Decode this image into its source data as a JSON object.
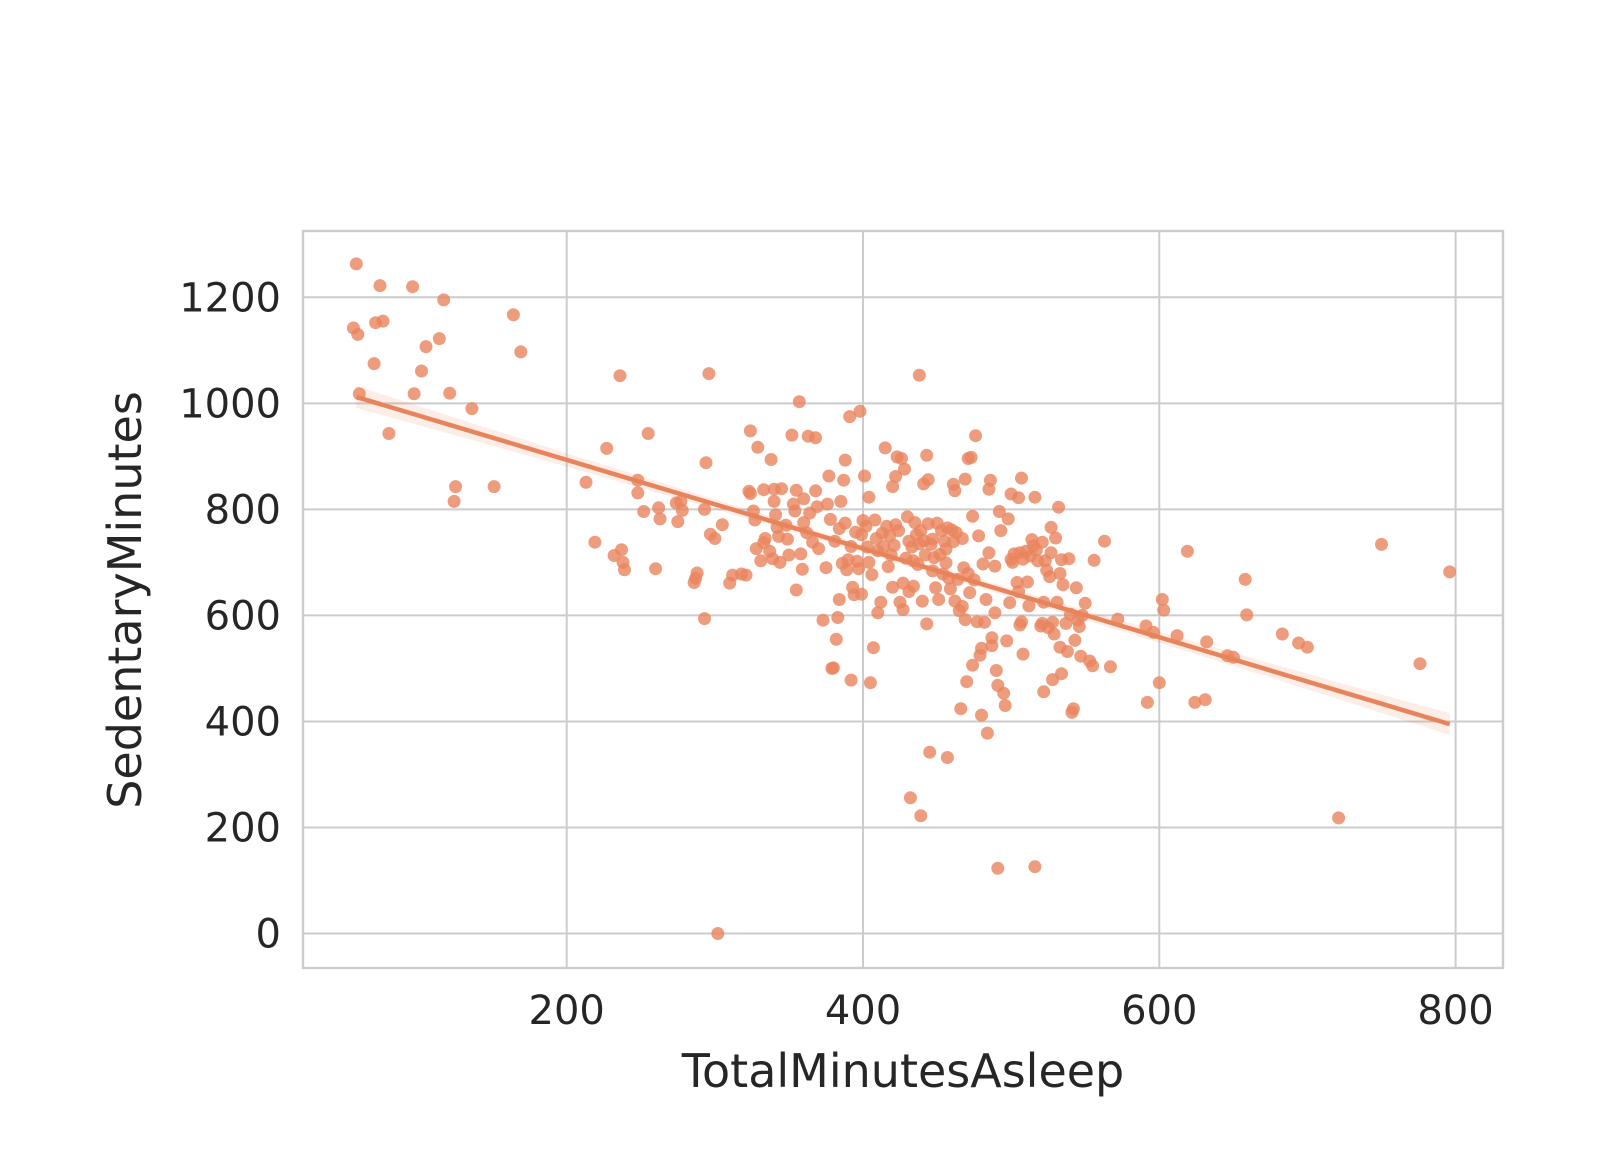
{
  "chart_data": {
    "type": "scatter",
    "xlabel": "TotalMinutesAsleep",
    "ylabel": "SedentaryMinutes",
    "xlim": [
      22,
      832
    ],
    "ylim": [
      -65,
      1325
    ],
    "xticks": [
      200,
      400,
      600,
      800
    ],
    "yticks": [
      0,
      200,
      400,
      600,
      800,
      1000,
      1200
    ],
    "xtick_labels": [
      "200",
      "400",
      "600",
      "800"
    ],
    "ytick_labels": [
      "0",
      "200",
      "400",
      "600",
      "800",
      "1000",
      "1200"
    ],
    "grid": true,
    "legend": "none",
    "point_color": "#E8845C",
    "line_color": "#E8845C",
    "regression": {
      "x_start": 58,
      "y_start": 1012,
      "x_end": 796,
      "y_end": 395
    },
    "points": [
      [
        58,
        1263
      ],
      [
        56,
        1142
      ],
      [
        59,
        1130
      ],
      [
        60,
        1018
      ],
      [
        71,
        1152
      ],
      [
        74,
        1222
      ],
      [
        76,
        1155
      ],
      [
        70,
        1075
      ],
      [
        80,
        943
      ],
      [
        96,
        1220
      ],
      [
        97,
        1018
      ],
      [
        102,
        1061
      ],
      [
        105,
        1107
      ],
      [
        114,
        1122
      ],
      [
        117,
        1195
      ],
      [
        121,
        1019
      ],
      [
        125,
        843
      ],
      [
        124,
        815
      ],
      [
        136,
        990
      ],
      [
        151,
        843
      ],
      [
        164,
        1167
      ],
      [
        169,
        1097
      ],
      [
        213,
        851
      ],
      [
        219,
        738
      ],
      [
        227,
        915
      ],
      [
        232,
        713
      ],
      [
        237,
        724
      ],
      [
        238,
        700
      ],
      [
        239,
        686
      ],
      [
        236,
        1052
      ],
      [
        248,
        855
      ],
      [
        248,
        831
      ],
      [
        252,
        796
      ],
      [
        255,
        943
      ],
      [
        260,
        688
      ],
      [
        262,
        803
      ],
      [
        263,
        782
      ],
      [
        274,
        812
      ],
      [
        275,
        777
      ],
      [
        277,
        815
      ],
      [
        278,
        798
      ],
      [
        286,
        662
      ],
      [
        287,
        670
      ],
      [
        288,
        680
      ],
      [
        293,
        800
      ],
      [
        293,
        594
      ],
      [
        294,
        888
      ],
      [
        296,
        1056
      ],
      [
        297,
        753
      ],
      [
        300,
        745
      ],
      [
        302,
        0
      ],
      [
        305,
        771
      ],
      [
        310,
        661
      ],
      [
        312,
        676
      ],
      [
        318,
        678
      ],
      [
        321,
        676
      ],
      [
        323,
        834
      ],
      [
        324,
        830
      ],
      [
        324,
        948
      ],
      [
        326,
        797
      ],
      [
        327,
        780
      ],
      [
        328,
        726
      ],
      [
        329,
        917
      ],
      [
        331,
        703
      ],
      [
        333,
        737
      ],
      [
        333,
        837
      ],
      [
        334,
        745
      ],
      [
        337,
        721
      ],
      [
        338,
        894
      ],
      [
        339,
        707
      ],
      [
        340,
        838
      ],
      [
        340,
        815
      ],
      [
        341,
        790
      ],
      [
        342,
        766
      ],
      [
        343,
        749
      ],
      [
        344,
        700
      ],
      [
        345,
        839
      ],
      [
        348,
        770
      ],
      [
        349,
        744
      ],
      [
        350,
        714
      ],
      [
        352,
        940
      ],
      [
        353,
        810
      ],
      [
        354,
        797
      ],
      [
        355,
        836
      ],
      [
        355,
        648
      ],
      [
        357,
        1003
      ],
      [
        358,
        716
      ],
      [
        359,
        687
      ],
      [
        360,
        820
      ],
      [
        360,
        775
      ],
      [
        362,
        756
      ],
      [
        363,
        938
      ],
      [
        364,
        793
      ],
      [
        366,
        738
      ],
      [
        368,
        935
      ],
      [
        368,
        835
      ],
      [
        369,
        805
      ],
      [
        370,
        726
      ],
      [
        373,
        591
      ],
      [
        375,
        690
      ],
      [
        376,
        810
      ],
      [
        377,
        863
      ],
      [
        378,
        781
      ],
      [
        379,
        500
      ],
      [
        380,
        501
      ],
      [
        381,
        740
      ],
      [
        382,
        555
      ],
      [
        383,
        596
      ],
      [
        384,
        630
      ],
      [
        384,
        764
      ],
      [
        385,
        815
      ],
      [
        386,
        698
      ],
      [
        387,
        855
      ],
      [
        388,
        774
      ],
      [
        388,
        893
      ],
      [
        389,
        686
      ],
      [
        390,
        705
      ],
      [
        391,
        975
      ],
      [
        392,
        478
      ],
      [
        392,
        730
      ],
      [
        393,
        653
      ],
      [
        394,
        639
      ],
      [
        395,
        757
      ],
      [
        396,
        702
      ],
      [
        397,
        688
      ],
      [
        398,
        985
      ],
      [
        399,
        752
      ],
      [
        399,
        640
      ],
      [
        400,
        779
      ],
      [
        401,
        863
      ],
      [
        402,
        768
      ],
      [
        403,
        729
      ],
      [
        404,
        823
      ],
      [
        404,
        700
      ],
      [
        405,
        473
      ],
      [
        406,
        677
      ],
      [
        407,
        539
      ],
      [
        408,
        780
      ],
      [
        409,
        745
      ],
      [
        410,
        722
      ],
      [
        410,
        605
      ],
      [
        412,
        625
      ],
      [
        413,
        755
      ],
      [
        414,
        730
      ],
      [
        415,
        916
      ],
      [
        416,
        768
      ],
      [
        417,
        692
      ],
      [
        418,
        750
      ],
      [
        419,
        714
      ],
      [
        420,
        843
      ],
      [
        420,
        653
      ],
      [
        421,
        732
      ],
      [
        422,
        771
      ],
      [
        422,
        862
      ],
      [
        423,
        899
      ],
      [
        424,
        760
      ],
      [
        425,
        625
      ],
      [
        426,
        896
      ],
      [
        427,
        661
      ],
      [
        427,
        611
      ],
      [
        428,
        876
      ],
      [
        429,
        708
      ],
      [
        430,
        786
      ],
      [
        431,
        740
      ],
      [
        431,
        645
      ],
      [
        432,
        256
      ],
      [
        433,
        729
      ],
      [
        434,
        703
      ],
      [
        434,
        655
      ],
      [
        435,
        775
      ],
      [
        436,
        752
      ],
      [
        437,
        696
      ],
      [
        438,
        1053
      ],
      [
        438,
        735
      ],
      [
        439,
        222
      ],
      [
        439,
        760
      ],
      [
        440,
        627
      ],
      [
        441,
        848
      ],
      [
        441,
        741
      ],
      [
        442,
        714
      ],
      [
        443,
        584
      ],
      [
        443,
        902
      ],
      [
        444,
        773
      ],
      [
        444,
        856
      ],
      [
        445,
        342
      ],
      [
        446,
        734
      ],
      [
        447,
        744
      ],
      [
        447,
        684
      ],
      [
        448,
        709
      ],
      [
        449,
        652
      ],
      [
        450,
        774
      ],
      [
        451,
        630
      ],
      [
        452,
        715
      ],
      [
        453,
        760
      ],
      [
        454,
        678
      ],
      [
        455,
        740
      ],
      [
        456,
        725
      ],
      [
        456,
        699
      ],
      [
        457,
        765
      ],
      [
        457,
        332
      ],
      [
        458,
        670
      ],
      [
        459,
        650
      ],
      [
        460,
        761
      ],
      [
        461,
        739
      ],
      [
        461,
        847
      ],
      [
        462,
        835
      ],
      [
        462,
        627
      ],
      [
        463,
        756
      ],
      [
        464,
        668
      ],
      [
        465,
        609
      ],
      [
        466,
        424
      ],
      [
        467,
        617
      ],
      [
        467,
        745
      ],
      [
        468,
        690
      ],
      [
        469,
        857
      ],
      [
        469,
        592
      ],
      [
        470,
        475
      ],
      [
        471,
        679
      ],
      [
        471,
        896
      ],
      [
        472,
        643
      ],
      [
        473,
        898
      ],
      [
        474,
        506
      ],
      [
        474,
        787
      ],
      [
        475,
        667
      ],
      [
        476,
        939
      ],
      [
        477,
        588
      ],
      [
        478,
        750
      ],
      [
        479,
        525
      ],
      [
        480,
        538
      ],
      [
        480,
        412
      ],
      [
        481,
        697
      ],
      [
        482,
        587
      ],
      [
        483,
        630
      ],
      [
        484,
        378
      ],
      [
        485,
        718
      ],
      [
        485,
        838
      ],
      [
        486,
        855
      ],
      [
        487,
        543
      ],
      [
        487,
        558
      ],
      [
        489,
        693
      ],
      [
        489,
        605
      ],
      [
        490,
        496
      ],
      [
        491,
        123
      ],
      [
        491,
        468
      ],
      [
        492,
        796
      ],
      [
        493,
        760
      ],
      [
        495,
        453
      ],
      [
        496,
        430
      ],
      [
        497,
        552
      ],
      [
        498,
        782
      ],
      [
        499,
        624
      ],
      [
        500,
        829
      ],
      [
        500,
        706
      ],
      [
        501,
        700
      ],
      [
        502,
        716
      ],
      [
        504,
        662
      ],
      [
        505,
        822
      ],
      [
        505,
        645
      ],
      [
        506,
        582
      ],
      [
        506,
        718
      ],
      [
        507,
        859
      ],
      [
        507,
        588
      ],
      [
        508,
        527
      ],
      [
        508,
        706
      ],
      [
        510,
        721
      ],
      [
        511,
        663
      ],
      [
        512,
        618
      ],
      [
        513,
        712
      ],
      [
        514,
        743
      ],
      [
        515,
        731
      ],
      [
        516,
        126
      ],
      [
        516,
        823
      ],
      [
        517,
        723
      ],
      [
        518,
        703
      ],
      [
        520,
        580
      ],
      [
        521,
        738
      ],
      [
        521,
        585
      ],
      [
        522,
        456
      ],
      [
        522,
        625
      ],
      [
        523,
        703
      ],
      [
        524,
        685
      ],
      [
        525,
        577
      ],
      [
        526,
        673
      ],
      [
        527,
        766
      ],
      [
        527,
        718
      ],
      [
        528,
        479
      ],
      [
        528,
        587
      ],
      [
        529,
        565
      ],
      [
        530,
        746
      ],
      [
        531,
        625
      ],
      [
        532,
        804
      ],
      [
        533,
        679
      ],
      [
        533,
        540
      ],
      [
        534,
        490
      ],
      [
        534,
        705
      ],
      [
        535,
        658
      ],
      [
        537,
        585
      ],
      [
        538,
        532
      ],
      [
        539,
        707
      ],
      [
        540,
        602
      ],
      [
        541,
        417
      ],
      [
        542,
        424
      ],
      [
        543,
        553
      ],
      [
        544,
        652
      ],
      [
        545,
        591
      ],
      [
        546,
        579
      ],
      [
        547,
        523
      ],
      [
        548,
        600
      ],
      [
        550,
        623
      ],
      [
        553,
        514
      ],
      [
        555,
        505
      ],
      [
        556,
        704
      ],
      [
        563,
        740
      ],
      [
        567,
        503
      ],
      [
        572,
        593
      ],
      [
        591,
        580
      ],
      [
        592,
        436
      ],
      [
        596,
        568
      ],
      [
        600,
        473
      ],
      [
        602,
        630
      ],
      [
        603,
        610
      ],
      [
        612,
        562
      ],
      [
        619,
        721
      ],
      [
        624,
        436
      ],
      [
        631,
        441
      ],
      [
        632,
        550
      ],
      [
        646,
        524
      ],
      [
        650,
        521
      ],
      [
        658,
        668
      ],
      [
        659,
        601
      ],
      [
        683,
        565
      ],
      [
        694,
        548
      ],
      [
        700,
        540
      ],
      [
        721,
        218
      ],
      [
        750,
        734
      ],
      [
        776,
        509
      ],
      [
        796,
        682
      ]
    ]
  }
}
